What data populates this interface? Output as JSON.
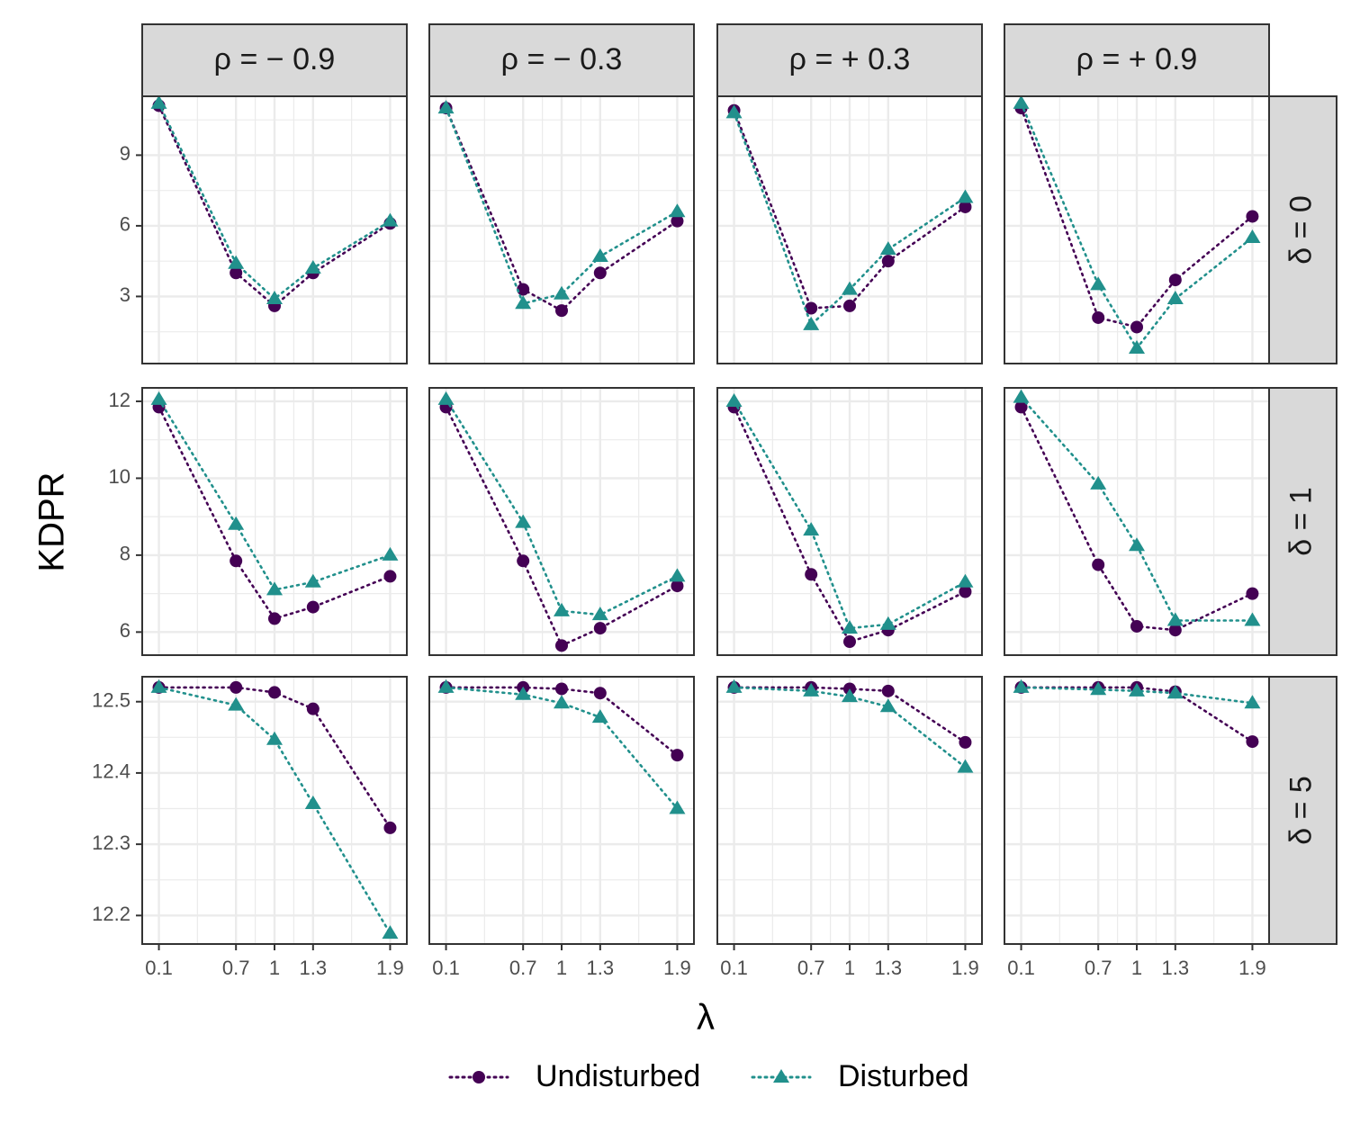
{
  "chart_data": {
    "type": "line",
    "ylabel": "KDPR",
    "xlabel": "λ",
    "x_categories": [
      "0.1",
      "0.7",
      "1",
      "1.3",
      "1.9"
    ],
    "x": [
      0.1,
      0.7,
      1.0,
      1.3,
      1.9
    ],
    "x_range": [
      -0.03,
      2.03
    ],
    "col_facets": [
      {
        "label": "ρ = − 0.9"
      },
      {
        "label": "ρ = − 0.3"
      },
      {
        "label": "ρ = + 0.3"
      },
      {
        "label": "ρ = + 0.9"
      }
    ],
    "row_facets": [
      {
        "label": "δ = 0",
        "ylim": [
          0.15,
          11.5
        ],
        "yticks": [
          3,
          6,
          9
        ],
        "ytick_labels": [
          "3",
          "6",
          "9"
        ],
        "minor_step": 1.5
      },
      {
        "label": "δ = 1",
        "ylim": [
          5.4,
          12.35
        ],
        "yticks": [
          6,
          8,
          10,
          12
        ],
        "ytick_labels": [
          "6",
          "8",
          "10",
          "12"
        ],
        "minor_step": 1
      },
      {
        "label": "δ = 5",
        "ylim": [
          12.16,
          12.535
        ],
        "yticks": [
          12.2,
          12.3,
          12.4,
          12.5
        ],
        "ytick_labels": [
          "12.2",
          "12.3",
          "12.4",
          "12.5"
        ],
        "minor_step": 0.05
      }
    ],
    "series": [
      {
        "name": "Undisturbed",
        "color": "#440154",
        "marker": "circle"
      },
      {
        "name": "Disturbed",
        "color": "#21908C",
        "marker": "triangle"
      }
    ],
    "panels": [
      {
        "row": 0,
        "col": 0,
        "Undisturbed": [
          11.1,
          4.0,
          2.6,
          4.0,
          6.1
        ],
        "Disturbed": [
          11.2,
          4.4,
          2.9,
          4.2,
          6.2
        ]
      },
      {
        "row": 0,
        "col": 1,
        "Undisturbed": [
          11.0,
          3.3,
          2.4,
          4.0,
          6.2
        ],
        "Disturbed": [
          11.0,
          2.7,
          3.1,
          4.7,
          6.6
        ]
      },
      {
        "row": 0,
        "col": 2,
        "Undisturbed": [
          10.9,
          2.5,
          2.6,
          4.5,
          6.8
        ],
        "Disturbed": [
          10.8,
          1.8,
          3.3,
          5.0,
          7.2
        ]
      },
      {
        "row": 0,
        "col": 3,
        "Undisturbed": [
          11.0,
          2.1,
          1.7,
          3.7,
          6.4
        ],
        "Disturbed": [
          11.2,
          3.5,
          0.8,
          2.9,
          5.5
        ]
      },
      {
        "row": 1,
        "col": 0,
        "Undisturbed": [
          11.85,
          7.85,
          6.35,
          6.65,
          7.45
        ],
        "Disturbed": [
          12.05,
          8.8,
          7.1,
          7.3,
          8.0
        ]
      },
      {
        "row": 1,
        "col": 1,
        "Undisturbed": [
          11.85,
          7.85,
          5.65,
          6.1,
          7.2
        ],
        "Disturbed": [
          12.05,
          8.85,
          6.55,
          6.45,
          7.45
        ]
      },
      {
        "row": 1,
        "col": 2,
        "Undisturbed": [
          11.85,
          7.5,
          5.75,
          6.05,
          7.05
        ],
        "Disturbed": [
          12.0,
          8.65,
          6.1,
          6.2,
          7.3
        ]
      },
      {
        "row": 1,
        "col": 3,
        "Undisturbed": [
          11.85,
          7.75,
          6.15,
          6.05,
          7.0
        ],
        "Disturbed": [
          12.1,
          9.85,
          8.25,
          6.3,
          6.3
        ]
      },
      {
        "row": 2,
        "col": 0,
        "Undisturbed": [
          12.52,
          12.52,
          12.513,
          12.49,
          12.323
        ],
        "Disturbed": [
          12.52,
          12.495,
          12.447,
          12.357,
          12.175
        ]
      },
      {
        "row": 2,
        "col": 1,
        "Undisturbed": [
          12.52,
          12.52,
          12.518,
          12.512,
          12.425
        ],
        "Disturbed": [
          12.52,
          12.51,
          12.498,
          12.478,
          12.35
        ]
      },
      {
        "row": 2,
        "col": 2,
        "Undisturbed": [
          12.52,
          12.52,
          12.518,
          12.515,
          12.443
        ],
        "Disturbed": [
          12.52,
          12.515,
          12.507,
          12.493,
          12.408
        ]
      },
      {
        "row": 2,
        "col": 3,
        "Undisturbed": [
          12.52,
          12.52,
          12.52,
          12.514,
          12.444
        ],
        "Disturbed": [
          12.52,
          12.517,
          12.515,
          12.512,
          12.498
        ]
      }
    ]
  }
}
